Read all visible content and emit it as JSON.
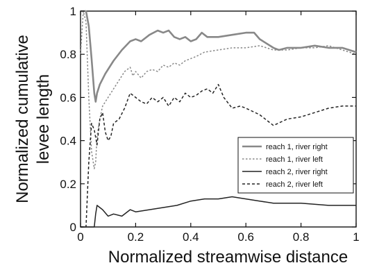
{
  "chart_data": {
    "type": "line",
    "xlabel": "Normalized streamwise distance",
    "ylabel_line1": "Normalized cumulative",
    "ylabel_line2": "levee length",
    "xlim": [
      0,
      1
    ],
    "ylim": [
      0,
      1
    ],
    "xticks": [
      "0",
      "0.2",
      "0.4",
      "0.6",
      "0.8",
      "1"
    ],
    "yticks": [
      "0",
      "0.2",
      "0.4",
      "0.6",
      "0.8",
      "1"
    ],
    "legend_position": "right-middle",
    "series": [
      {
        "name": "reach 1, river right",
        "color": "#888888",
        "style": "solid",
        "points": [
          [
            0.0,
            1.0
          ],
          [
            0.02,
            1.0
          ],
          [
            0.03,
            0.93
          ],
          [
            0.04,
            0.78
          ],
          [
            0.05,
            0.62
          ],
          [
            0.055,
            0.58
          ],
          [
            0.06,
            0.62
          ],
          [
            0.07,
            0.66
          ],
          [
            0.09,
            0.71
          ],
          [
            0.12,
            0.77
          ],
          [
            0.15,
            0.82
          ],
          [
            0.18,
            0.86
          ],
          [
            0.2,
            0.87
          ],
          [
            0.22,
            0.86
          ],
          [
            0.25,
            0.89
          ],
          [
            0.28,
            0.91
          ],
          [
            0.3,
            0.9
          ],
          [
            0.32,
            0.91
          ],
          [
            0.34,
            0.88
          ],
          [
            0.36,
            0.87
          ],
          [
            0.38,
            0.88
          ],
          [
            0.4,
            0.86
          ],
          [
            0.42,
            0.87
          ],
          [
            0.44,
            0.9
          ],
          [
            0.46,
            0.88
          ],
          [
            0.5,
            0.88
          ],
          [
            0.55,
            0.89
          ],
          [
            0.6,
            0.9
          ],
          [
            0.63,
            0.9
          ],
          [
            0.65,
            0.87
          ],
          [
            0.7,
            0.83
          ],
          [
            0.72,
            0.82
          ],
          [
            0.75,
            0.83
          ],
          [
            0.8,
            0.83
          ],
          [
            0.85,
            0.84
          ],
          [
            0.9,
            0.83
          ],
          [
            0.95,
            0.83
          ],
          [
            1.0,
            0.81
          ]
        ]
      },
      {
        "name": "reach 1, river left",
        "color": "#888888",
        "style": "dotted",
        "points": [
          [
            0.0,
            0.8
          ],
          [
            0.01,
            1.0
          ],
          [
            0.02,
            0.95
          ],
          [
            0.03,
            0.6
          ],
          [
            0.04,
            0.35
          ],
          [
            0.05,
            0.27
          ],
          [
            0.055,
            0.3
          ],
          [
            0.06,
            0.42
          ],
          [
            0.07,
            0.5
          ],
          [
            0.08,
            0.56
          ],
          [
            0.1,
            0.6
          ],
          [
            0.12,
            0.64
          ],
          [
            0.14,
            0.68
          ],
          [
            0.16,
            0.72
          ],
          [
            0.18,
            0.74
          ],
          [
            0.19,
            0.7
          ],
          [
            0.2,
            0.72
          ],
          [
            0.22,
            0.69
          ],
          [
            0.24,
            0.72
          ],
          [
            0.26,
            0.73
          ],
          [
            0.28,
            0.72
          ],
          [
            0.3,
            0.75
          ],
          [
            0.32,
            0.74
          ],
          [
            0.34,
            0.76
          ],
          [
            0.36,
            0.75
          ],
          [
            0.38,
            0.77
          ],
          [
            0.4,
            0.78
          ],
          [
            0.42,
            0.79
          ],
          [
            0.45,
            0.81
          ],
          [
            0.5,
            0.82
          ],
          [
            0.55,
            0.83
          ],
          [
            0.6,
            0.83
          ],
          [
            0.65,
            0.84
          ],
          [
            0.7,
            0.82
          ],
          [
            0.75,
            0.82
          ],
          [
            0.8,
            0.83
          ],
          [
            0.85,
            0.83
          ],
          [
            0.9,
            0.84
          ],
          [
            0.95,
            0.82
          ],
          [
            1.0,
            0.8
          ]
        ]
      },
      {
        "name": "reach 2, river right",
        "color": "#222222",
        "style": "solid",
        "points": [
          [
            0.0,
            0.0
          ],
          [
            0.05,
            0.0
          ],
          [
            0.055,
            0.06
          ],
          [
            0.06,
            0.1
          ],
          [
            0.07,
            0.09
          ],
          [
            0.08,
            0.08
          ],
          [
            0.1,
            0.05
          ],
          [
            0.12,
            0.06
          ],
          [
            0.15,
            0.05
          ],
          [
            0.18,
            0.08
          ],
          [
            0.2,
            0.07
          ],
          [
            0.25,
            0.08
          ],
          [
            0.3,
            0.09
          ],
          [
            0.35,
            0.1
          ],
          [
            0.4,
            0.12
          ],
          [
            0.45,
            0.13
          ],
          [
            0.5,
            0.13
          ],
          [
            0.55,
            0.14
          ],
          [
            0.6,
            0.13
          ],
          [
            0.65,
            0.12
          ],
          [
            0.7,
            0.11
          ],
          [
            0.8,
            0.11
          ],
          [
            0.9,
            0.1
          ],
          [
            1.0,
            0.1
          ]
        ]
      },
      {
        "name": "reach 2, river left",
        "color": "#222222",
        "style": "dashed",
        "points": [
          [
            0.0,
            0.0
          ],
          [
            0.02,
            0.0
          ],
          [
            0.03,
            0.3
          ],
          [
            0.04,
            0.48
          ],
          [
            0.05,
            0.45
          ],
          [
            0.06,
            0.38
          ],
          [
            0.07,
            0.5
          ],
          [
            0.08,
            0.53
          ],
          [
            0.09,
            0.44
          ],
          [
            0.1,
            0.4
          ],
          [
            0.11,
            0.42
          ],
          [
            0.12,
            0.48
          ],
          [
            0.14,
            0.5
          ],
          [
            0.16,
            0.55
          ],
          [
            0.18,
            0.62
          ],
          [
            0.2,
            0.6
          ],
          [
            0.22,
            0.58
          ],
          [
            0.24,
            0.57
          ],
          [
            0.26,
            0.6
          ],
          [
            0.28,
            0.58
          ],
          [
            0.3,
            0.6
          ],
          [
            0.32,
            0.56
          ],
          [
            0.34,
            0.6
          ],
          [
            0.36,
            0.58
          ],
          [
            0.38,
            0.62
          ],
          [
            0.4,
            0.6
          ],
          [
            0.42,
            0.61
          ],
          [
            0.44,
            0.63
          ],
          [
            0.46,
            0.64
          ],
          [
            0.48,
            0.62
          ],
          [
            0.5,
            0.66
          ],
          [
            0.52,
            0.6
          ],
          [
            0.55,
            0.55
          ],
          [
            0.58,
            0.56
          ],
          [
            0.6,
            0.55
          ],
          [
            0.65,
            0.52
          ],
          [
            0.7,
            0.47
          ],
          [
            0.75,
            0.5
          ],
          [
            0.8,
            0.51
          ],
          [
            0.85,
            0.53
          ],
          [
            0.9,
            0.55
          ],
          [
            0.95,
            0.56
          ],
          [
            1.0,
            0.56
          ]
        ]
      }
    ]
  }
}
